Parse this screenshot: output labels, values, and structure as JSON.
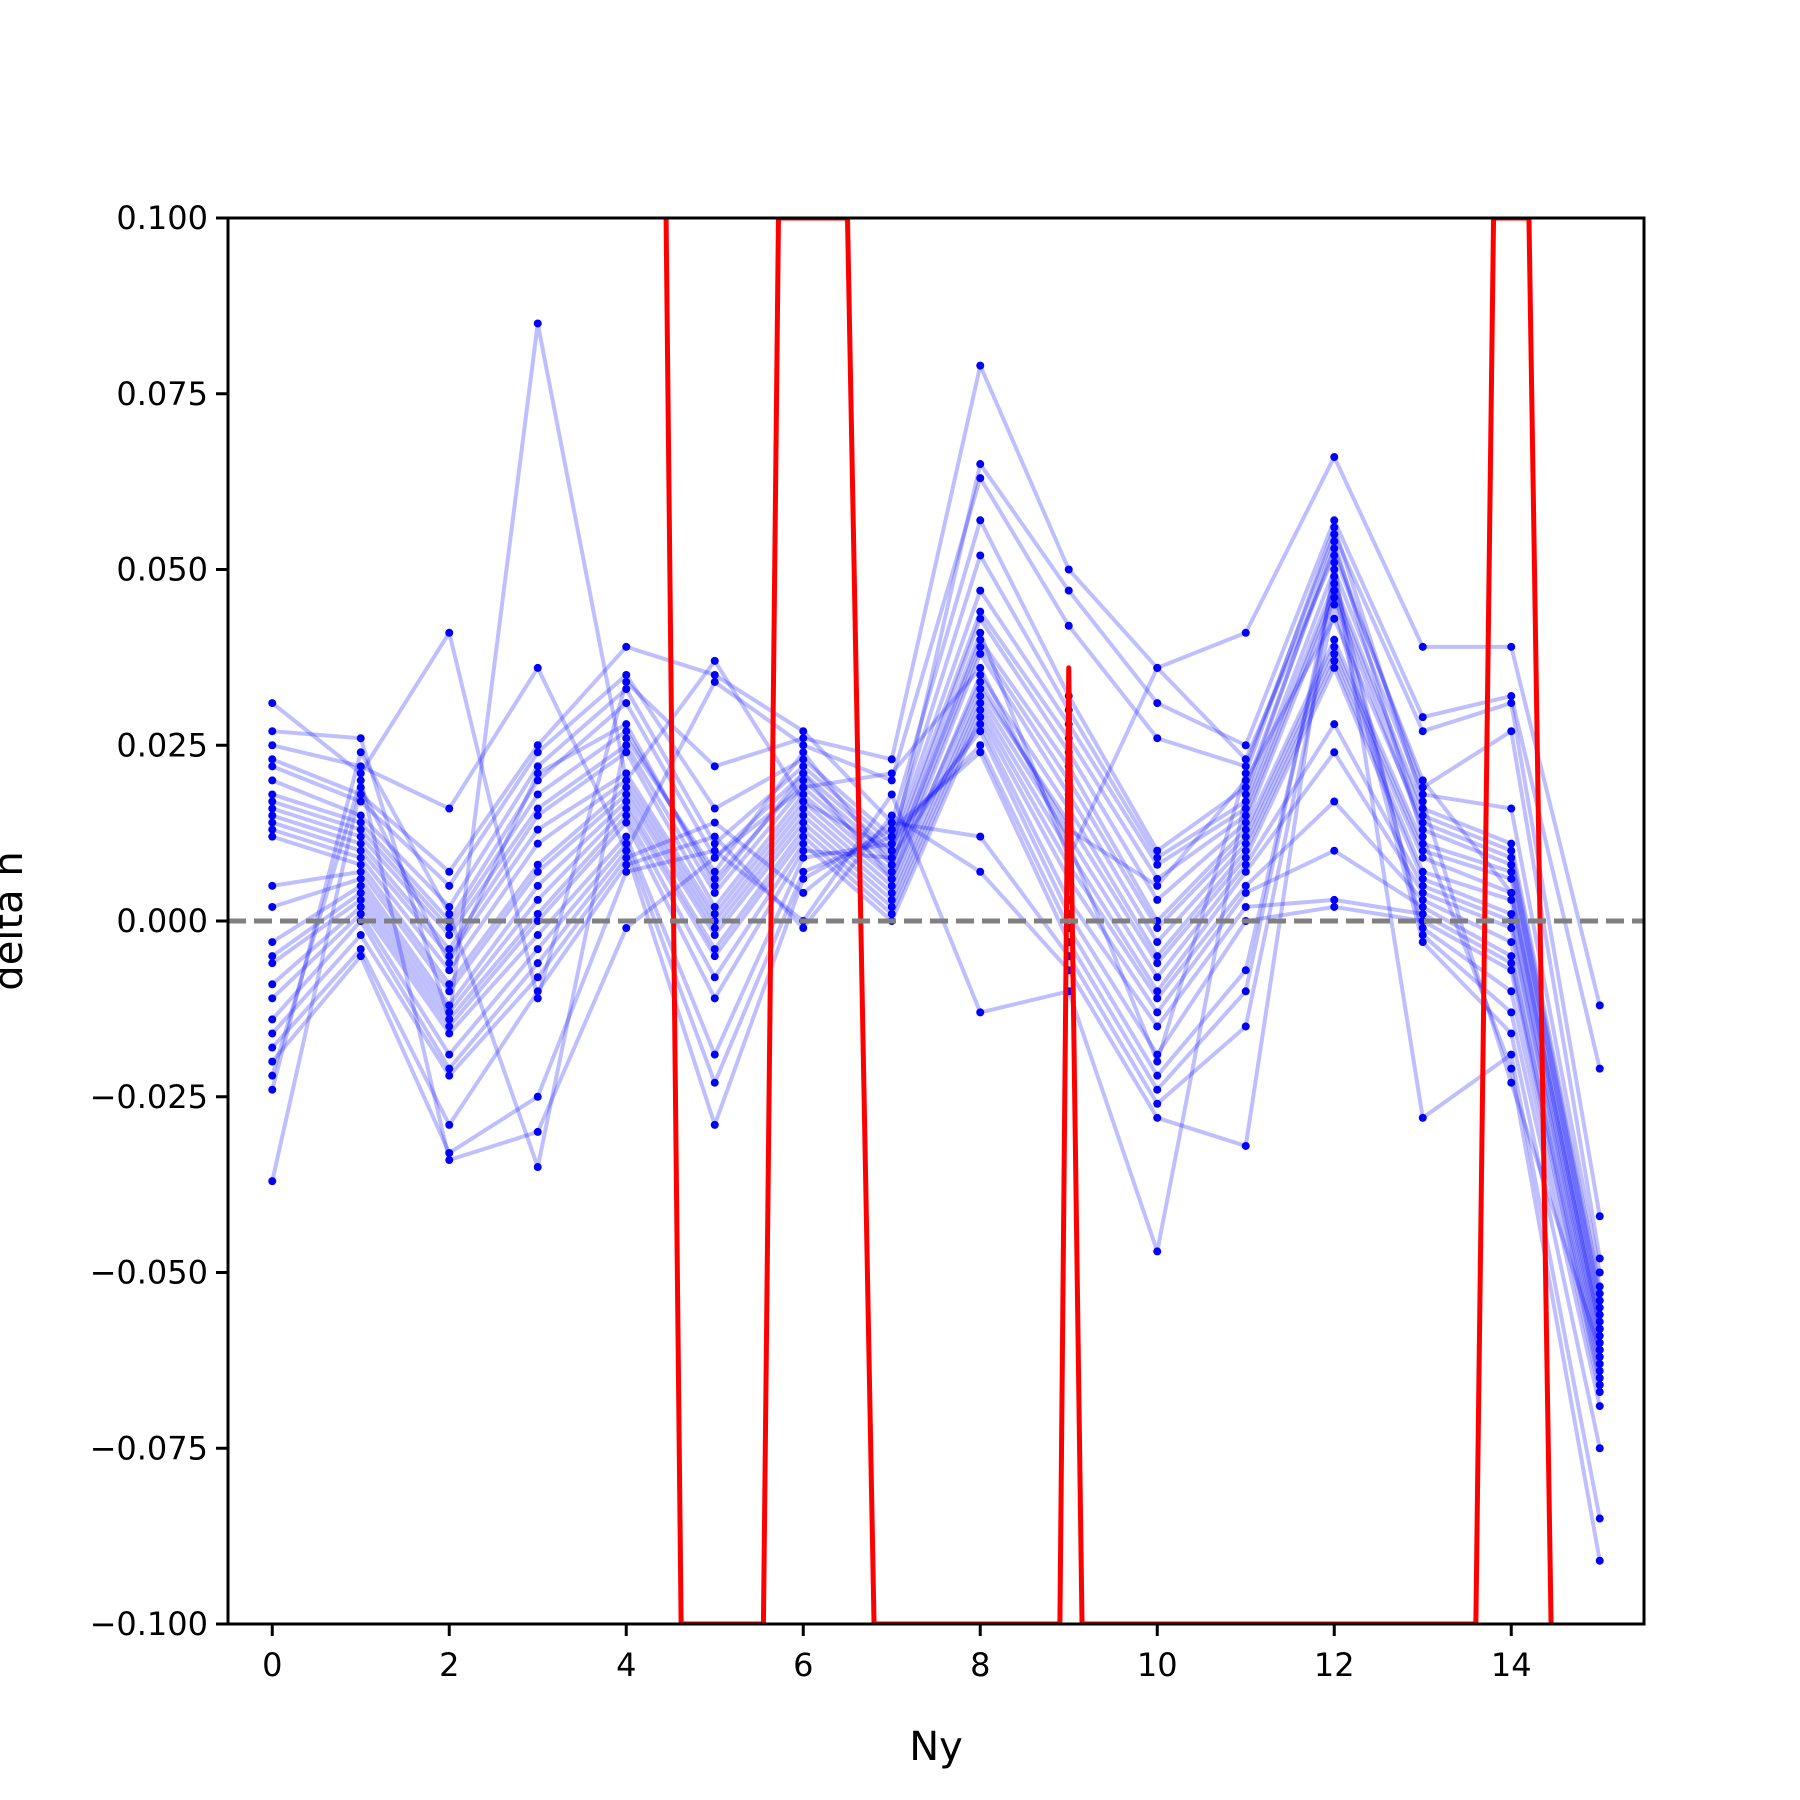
{
  "chart_data": {
    "type": "line",
    "title": "",
    "xlabel": "Ny",
    "ylabel": "delta n",
    "xlim": [
      -0.5,
      15.5
    ],
    "ylim": [
      -0.1,
      0.1
    ],
    "x_ticks": [
      0,
      2,
      4,
      6,
      8,
      10,
      12,
      14
    ],
    "y_ticks": [
      -0.1,
      -0.075,
      -0.05,
      -0.025,
      0.0,
      0.025,
      0.05,
      0.075,
      0.1
    ],
    "x_tick_labels": [
      "0",
      "2",
      "4",
      "6",
      "8",
      "10",
      "12",
      "14"
    ],
    "y_tick_labels": [
      "−0.100",
      "−0.075",
      "−0.050",
      "−0.025",
      "0.000",
      "0.025",
      "0.050",
      "0.075",
      "0.100"
    ],
    "grid": false,
    "reference_line": {
      "y": 0.0,
      "style": "dashed",
      "color": "#808080"
    },
    "colors": {
      "series": "#0000ff",
      "mean": "#ff0000"
    },
    "x": [
      0,
      1,
      2,
      3,
      4,
      5,
      6,
      7,
      8,
      9,
      10,
      11,
      12,
      13,
      14,
      15
    ],
    "series": [
      {
        "values": [
          0.031,
          0.021,
          0.041,
          -0.011,
          0.034,
          0.022,
          0.026,
          0.023,
          0.079,
          0.05,
          0.036,
          0.041,
          0.066,
          0.039,
          0.039,
          -0.012
        ]
      },
      {
        "values": [
          0.027,
          0.026,
          -0.014,
          0.085,
          0.02,
          0.037,
          0.017,
          0.01,
          0.065,
          0.047,
          0.031,
          0.025,
          0.057,
          0.029,
          0.032,
          -0.021
        ]
      },
      {
        "values": [
          0.025,
          0.022,
          0.016,
          0.036,
          0.01,
          0.034,
          0.025,
          0.02,
          0.063,
          0.042,
          0.026,
          0.022,
          0.055,
          0.027,
          0.031,
          -0.042
        ]
      },
      {
        "values": [
          0.023,
          0.018,
          0.007,
          0.025,
          0.039,
          0.035,
          0.027,
          0.014,
          0.057,
          0.032,
          0.01,
          0.019,
          0.053,
          0.019,
          0.027,
          -0.048
        ]
      },
      {
        "values": [
          0.022,
          0.017,
          0.005,
          0.024,
          0.035,
          0.016,
          0.023,
          0.012,
          0.052,
          0.03,
          0.009,
          0.017,
          0.05,
          0.018,
          0.016,
          -0.05
        ]
      },
      {
        "values": [
          0.02,
          0.015,
          0.002,
          0.022,
          0.033,
          0.011,
          0.022,
          0.011,
          0.047,
          0.028,
          0.008,
          0.016,
          0.048,
          0.016,
          0.011,
          -0.052
        ]
      },
      {
        "values": [
          0.018,
          0.014,
          0.0,
          0.02,
          0.031,
          0.009,
          0.021,
          0.01,
          0.044,
          0.026,
          0.006,
          0.015,
          0.047,
          0.015,
          0.01,
          -0.053
        ]
      },
      {
        "values": [
          0.017,
          0.013,
          -0.001,
          0.018,
          0.027,
          0.006,
          0.02,
          0.009,
          0.043,
          0.024,
          0.003,
          0.014,
          0.046,
          0.013,
          0.008,
          -0.055
        ]
      },
      {
        "values": [
          0.016,
          0.012,
          -0.002,
          0.016,
          0.025,
          0.004,
          0.019,
          0.008,
          0.04,
          0.022,
          0.0,
          0.013,
          0.04,
          0.011,
          0.007,
          -0.056
        ]
      },
      {
        "values": [
          0.015,
          0.011,
          -0.004,
          0.015,
          0.024,
          0.002,
          0.018,
          0.007,
          0.039,
          0.02,
          -0.001,
          0.012,
          0.039,
          0.01,
          0.006,
          -0.057
        ]
      },
      {
        "values": [
          0.014,
          0.01,
          -0.005,
          0.013,
          0.021,
          0.001,
          0.017,
          0.006,
          0.038,
          0.018,
          -0.003,
          0.011,
          0.038,
          0.009,
          0.004,
          -0.058
        ]
      },
      {
        "values": [
          0.013,
          0.009,
          -0.007,
          0.011,
          0.02,
          0.0,
          0.016,
          0.005,
          0.035,
          0.016,
          -0.005,
          0.01,
          0.037,
          0.007,
          0.003,
          -0.059
        ]
      },
      {
        "values": [
          0.012,
          0.008,
          -0.009,
          0.008,
          0.019,
          -0.001,
          0.015,
          0.004,
          0.033,
          0.014,
          -0.006,
          0.009,
          0.036,
          0.006,
          0.001,
          -0.06
        ]
      },
      {
        "values": [
          0.005,
          0.007,
          -0.01,
          0.007,
          0.018,
          -0.002,
          0.014,
          0.003,
          0.032,
          0.012,
          -0.008,
          0.008,
          0.028,
          0.005,
          0.0,
          -0.061
        ]
      },
      {
        "values": [
          0.002,
          0.006,
          -0.012,
          0.005,
          0.017,
          -0.004,
          0.013,
          0.002,
          0.031,
          0.01,
          -0.01,
          0.007,
          0.024,
          0.004,
          -0.001,
          -0.062
        ]
      },
      {
        "values": [
          -0.003,
          0.005,
          -0.013,
          0.003,
          0.016,
          -0.005,
          0.012,
          0.001,
          0.03,
          0.008,
          -0.011,
          0.005,
          0.017,
          0.003,
          -0.003,
          -0.063
        ]
      },
      {
        "values": [
          -0.005,
          0.004,
          -0.014,
          0.001,
          0.015,
          -0.008,
          0.011,
          0.0,
          0.029,
          0.006,
          -0.013,
          0.004,
          0.01,
          0.002,
          -0.005,
          -0.064
        ]
      },
      {
        "values": [
          -0.006,
          0.003,
          -0.015,
          0.0,
          0.014,
          -0.011,
          0.01,
          0.009,
          0.028,
          0.003,
          -0.015,
          0.002,
          0.003,
          0.001,
          -0.006,
          -0.065
        ]
      },
      {
        "values": [
          -0.009,
          0.002,
          -0.016,
          -0.002,
          0.012,
          -0.019,
          0.009,
          0.011,
          0.027,
          0.001,
          -0.019,
          0.0,
          0.002,
          0.0,
          -0.007,
          -0.066
        ]
      },
      {
        "values": [
          -0.011,
          0.001,
          -0.019,
          -0.004,
          0.011,
          -0.023,
          0.007,
          0.012,
          0.025,
          -0.001,
          -0.022,
          -0.007,
          0.047,
          -0.001,
          -0.01,
          -0.067
        ]
      },
      {
        "values": [
          -0.014,
          0.0,
          -0.021,
          -0.006,
          0.01,
          -0.029,
          0.006,
          0.013,
          0.024,
          -0.003,
          -0.024,
          -0.01,
          0.049,
          -0.002,
          -0.013,
          -0.069
        ]
      },
      {
        "values": [
          -0.016,
          -0.002,
          -0.022,
          -0.008,
          0.009,
          0.014,
          0.004,
          0.014,
          0.012,
          -0.005,
          -0.026,
          -0.015,
          0.045,
          -0.003,
          -0.016,
          -0.075
        ]
      },
      {
        "values": [
          -0.018,
          -0.004,
          -0.029,
          -0.01,
          0.008,
          0.012,
          -0.001,
          0.015,
          0.007,
          -0.007,
          -0.028,
          -0.032,
          0.051,
          -0.028,
          -0.019,
          -0.085
        ]
      },
      {
        "values": [
          -0.02,
          -0.005,
          -0.033,
          -0.025,
          0.007,
          0.01,
          0.0,
          0.018,
          -0.013,
          -0.01,
          -0.047,
          0.018,
          0.054,
          0.012,
          -0.021,
          -0.091
        ]
      },
      {
        "values": [
          -0.022,
          0.02,
          -0.034,
          -0.03,
          -0.001,
          0.009,
          0.019,
          0.021,
          0.036,
          0.011,
          -0.02,
          0.021,
          0.056,
          0.017,
          -0.023,
          -0.061
        ]
      },
      {
        "values": [
          -0.024,
          0.024,
          0.001,
          -0.035,
          0.026,
          0.007,
          0.024,
          0.008,
          0.041,
          0.009,
          0.036,
          0.023,
          0.052,
          0.02,
          0.004,
          -0.058
        ]
      },
      {
        "values": [
          -0.037,
          0.019,
          -0.006,
          0.021,
          0.028,
          0.005,
          0.021,
          0.006,
          0.034,
          0.013,
          0.005,
          0.02,
          0.043,
          0.014,
          0.009,
          -0.054
        ]
      }
    ],
    "mean_line": {
      "x": [
        4.45,
        4.62,
        5.55,
        5.72,
        6.5,
        6.8,
        8.9,
        9.0,
        9.15,
        13.6,
        13.8,
        14.2,
        14.45
      ],
      "values": [
        0.1,
        -0.1,
        -0.1,
        0.1,
        0.1,
        -0.1,
        -0.1,
        0.036,
        -0.1,
        -0.1,
        0.1,
        0.1,
        -0.1
      ]
    }
  }
}
